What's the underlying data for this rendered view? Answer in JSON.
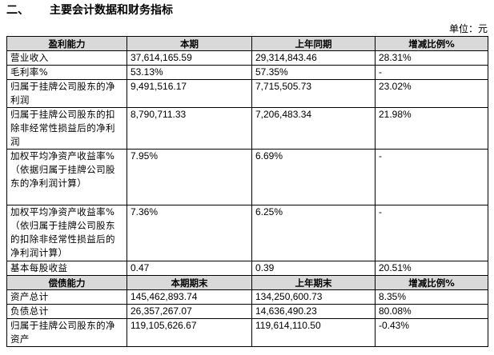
{
  "section": {
    "number": "二、",
    "title": "主要会计数据和财务指标"
  },
  "unit_note": "单位：元",
  "profitability": {
    "header": [
      "盈利能力",
      "本期",
      "上年同期",
      "增减比例%"
    ],
    "rows": [
      [
        "营业收入",
        "37,614,165.59",
        "29,314,843.46",
        "28.31%"
      ],
      [
        "毛利率%",
        "53.13%",
        "57.35%",
        "-"
      ],
      [
        "归属于挂牌公司股东的净利润",
        "9,491,516.17",
        "7,715,505.73",
        "23.02%"
      ],
      [
        "归属于挂牌公司股东的扣除非经常性损益后的净利润",
        "8,790,711.33",
        "7,206,483.34",
        "21.98%"
      ],
      [
        "加权平均净资产收益率%（依据归属于挂牌公司股东的净利润计算）",
        "7.95%",
        "6.69%",
        "-"
      ],
      [
        "加权平均净资产收益率%（依归属于挂牌公司股东的扣除非经常性损益后的净利润计算）",
        "7.36%",
        "6.25%",
        "-"
      ],
      [
        "基本每股收益",
        "0.47",
        "0.39",
        "20.51%"
      ]
    ]
  },
  "solvency": {
    "header": [
      "偿债能力",
      "本期期末",
      "上年期末",
      "增减比例%"
    ],
    "rows": [
      [
        "资产总计",
        "145,462,893.74",
        "134,250,600.73",
        "8.35%"
      ],
      [
        "负债总计",
        "26,357,267.07",
        "14,636,490.23",
        "80.08%"
      ],
      [
        "归属于挂牌公司股东的净资产",
        "119,105,626.67",
        "119,614,110.50",
        "-0.43%"
      ]
    ]
  }
}
